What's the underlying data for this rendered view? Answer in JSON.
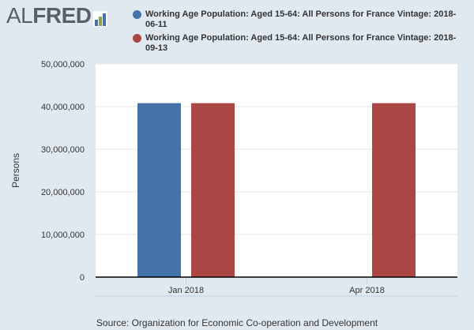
{
  "logo": {
    "text_al": "AL",
    "text_fred": "FRED"
  },
  "legend": [
    {
      "label": "Working Age Population: Aged 15-64: All Persons for France Vintage: 2018-06-11",
      "color": "#4572a7"
    },
    {
      "label": "Working Age Population: Aged 15-64: All Persons for France Vintage: 2018-09-13",
      "color": "#aa4643"
    }
  ],
  "source": "Source: Organization for Economic Co-operation and Development",
  "chart_data": {
    "type": "bar",
    "categories": [
      "Jan 2018",
      "Apr 2018"
    ],
    "series": [
      {
        "name": "Working Age Population: Aged 15-64: All Persons for France Vintage: 2018-06-11",
        "values": [
          40800000,
          null
        ],
        "color": "#4572a7"
      },
      {
        "name": "Working Age Population: Aged 15-64: All Persons for France Vintage: 2018-09-13",
        "values": [
          40800000,
          40800000
        ],
        "color": "#aa4643"
      }
    ],
    "ylabel": "Persons",
    "xlabel": "",
    "ylim": [
      0,
      50000000
    ],
    "yticks": [
      0,
      10000000,
      20000000,
      30000000,
      40000000,
      50000000
    ],
    "ytick_labels": [
      "0",
      "10,000,000",
      "20,000,000",
      "30,000,000",
      "40,000,000",
      "50,000,000"
    ],
    "grid": true
  }
}
